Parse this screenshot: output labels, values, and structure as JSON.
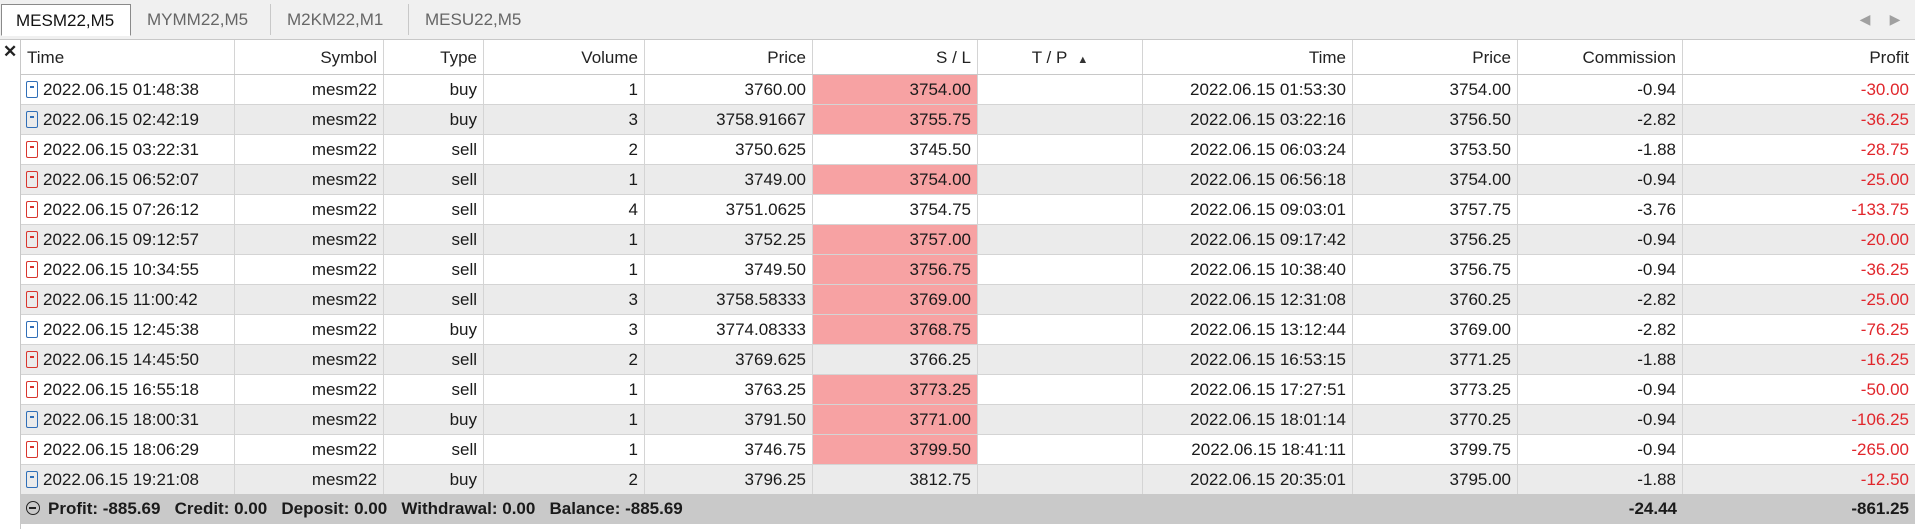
{
  "tabs": [
    "MESM22,M5",
    "MYMM22,M5",
    "M2KM22,M1",
    "MESU22,M5"
  ],
  "active_tab": 0,
  "columns": [
    "Time",
    "Symbol",
    "Type",
    "Volume",
    "Price",
    "S / L",
    "T / P",
    "Time",
    "Price",
    "Commission",
    "Profit"
  ],
  "rows": [
    {
      "time": "2022.06.15 01:48:38",
      "symbol": "mesm22",
      "type": "buy",
      "volume": "1",
      "price": "3760.00",
      "sl": "3754.00",
      "sl_hit": true,
      "tp": "",
      "close_time": "2022.06.15 01:53:30",
      "close_price": "3754.00",
      "commission": "-0.94",
      "profit": "-30.00"
    },
    {
      "time": "2022.06.15 02:42:19",
      "symbol": "mesm22",
      "type": "buy",
      "volume": "3",
      "price": "3758.91667",
      "sl": "3755.75",
      "sl_hit": true,
      "tp": "",
      "close_time": "2022.06.15 03:22:16",
      "close_price": "3756.50",
      "commission": "-2.82",
      "profit": "-36.25"
    },
    {
      "time": "2022.06.15 03:22:31",
      "symbol": "mesm22",
      "type": "sell",
      "volume": "2",
      "price": "3750.625",
      "sl": "3745.50",
      "sl_hit": false,
      "tp": "",
      "close_time": "2022.06.15 06:03:24",
      "close_price": "3753.50",
      "commission": "-1.88",
      "profit": "-28.75"
    },
    {
      "time": "2022.06.15 06:52:07",
      "symbol": "mesm22",
      "type": "sell",
      "volume": "1",
      "price": "3749.00",
      "sl": "3754.00",
      "sl_hit": true,
      "tp": "",
      "close_time": "2022.06.15 06:56:18",
      "close_price": "3754.00",
      "commission": "-0.94",
      "profit": "-25.00"
    },
    {
      "time": "2022.06.15 07:26:12",
      "symbol": "mesm22",
      "type": "sell",
      "volume": "4",
      "price": "3751.0625",
      "sl": "3754.75",
      "sl_hit": false,
      "tp": "",
      "close_time": "2022.06.15 09:03:01",
      "close_price": "3757.75",
      "commission": "-3.76",
      "profit": "-133.75"
    },
    {
      "time": "2022.06.15 09:12:57",
      "symbol": "mesm22",
      "type": "sell",
      "volume": "1",
      "price": "3752.25",
      "sl": "3757.00",
      "sl_hit": true,
      "tp": "",
      "close_time": "2022.06.15 09:17:42",
      "close_price": "3756.25",
      "commission": "-0.94",
      "profit": "-20.00"
    },
    {
      "time": "2022.06.15 10:34:55",
      "symbol": "mesm22",
      "type": "sell",
      "volume": "1",
      "price": "3749.50",
      "sl": "3756.75",
      "sl_hit": true,
      "tp": "",
      "close_time": "2022.06.15 10:38:40",
      "close_price": "3756.75",
      "commission": "-0.94",
      "profit": "-36.25"
    },
    {
      "time": "2022.06.15 11:00:42",
      "symbol": "mesm22",
      "type": "sell",
      "volume": "3",
      "price": "3758.58333",
      "sl": "3769.00",
      "sl_hit": true,
      "tp": "",
      "close_time": "2022.06.15 12:31:08",
      "close_price": "3760.25",
      "commission": "-2.82",
      "profit": "-25.00"
    },
    {
      "time": "2022.06.15 12:45:38",
      "symbol": "mesm22",
      "type": "buy",
      "volume": "3",
      "price": "3774.08333",
      "sl": "3768.75",
      "sl_hit": true,
      "tp": "",
      "close_time": "2022.06.15 13:12:44",
      "close_price": "3769.00",
      "commission": "-2.82",
      "profit": "-76.25"
    },
    {
      "time": "2022.06.15 14:45:50",
      "symbol": "mesm22",
      "type": "sell",
      "volume": "2",
      "price": "3769.625",
      "sl": "3766.25",
      "sl_hit": false,
      "tp": "",
      "close_time": "2022.06.15 16:53:15",
      "close_price": "3771.25",
      "commission": "-1.88",
      "profit": "-16.25"
    },
    {
      "time": "2022.06.15 16:55:18",
      "symbol": "mesm22",
      "type": "sell",
      "volume": "1",
      "price": "3763.25",
      "sl": "3773.25",
      "sl_hit": true,
      "tp": "",
      "close_time": "2022.06.15 17:27:51",
      "close_price": "3773.25",
      "commission": "-0.94",
      "profit": "-50.00"
    },
    {
      "time": "2022.06.15 18:00:31",
      "symbol": "mesm22",
      "type": "buy",
      "volume": "1",
      "price": "3791.50",
      "sl": "3771.00",
      "sl_hit": true,
      "tp": "",
      "close_time": "2022.06.15 18:01:14",
      "close_price": "3770.25",
      "commission": "-0.94",
      "profit": "-106.25"
    },
    {
      "time": "2022.06.15 18:06:29",
      "symbol": "mesm22",
      "type": "sell",
      "volume": "1",
      "price": "3746.75",
      "sl": "3799.50",
      "sl_hit": true,
      "tp": "",
      "close_time": "2022.06.15 18:41:11",
      "close_price": "3799.75",
      "commission": "-0.94",
      "profit": "-265.00"
    },
    {
      "time": "2022.06.15 19:21:08",
      "symbol": "mesm22",
      "type": "buy",
      "volume": "2",
      "price": "3796.25",
      "sl": "3812.75",
      "sl_hit": false,
      "tp": "",
      "close_time": "2022.06.15 20:35:01",
      "close_price": "3795.00",
      "commission": "-1.88",
      "profit": "-12.50"
    }
  ],
  "footer": {
    "summary": "Profit: -885.69   Credit: 0.00   Deposit: 0.00   Withdrawal: 0.00   Balance: -885.69",
    "commission_total": "-24.44",
    "profit_total": "-861.25"
  },
  "icons": {
    "close": "close-icon",
    "tab_left": "chevron-left-icon",
    "tab_right": "chevron-right-icon",
    "sort": "sort-ascending-icon",
    "buy": "buy-order-icon",
    "sell": "sell-order-icon",
    "collapse": "collapse-icon"
  },
  "colors": {
    "buy_icon": "#2f6fb8",
    "sell_icon": "#d9352d",
    "negative_profit": "#e1262b",
    "sl_hit_background": "#f7a2a3"
  }
}
